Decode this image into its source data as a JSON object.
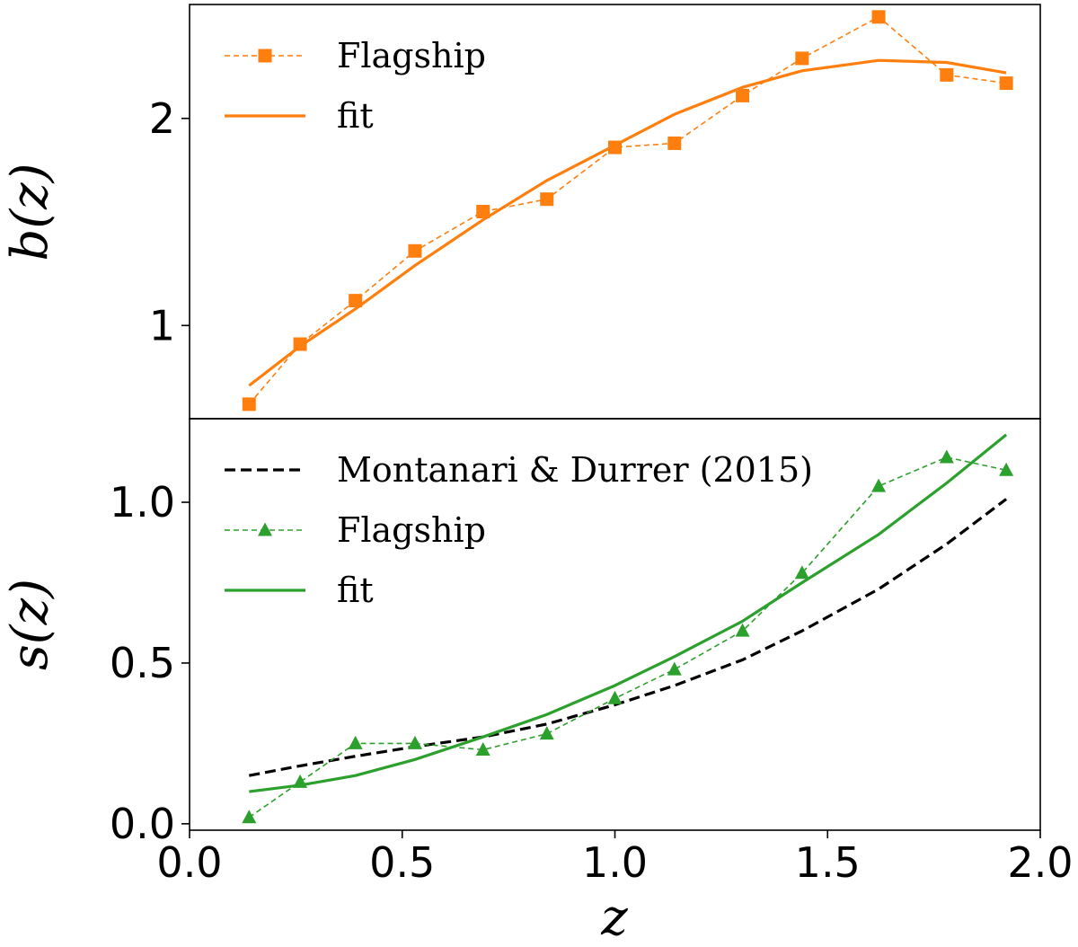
{
  "chart_data": [
    {
      "type": "line",
      "xlim": [
        0.0,
        2.0
      ],
      "ylim": [
        0.55,
        2.55
      ],
      "ylabel": "b(z)",
      "xlabel": "",
      "yticks": [
        1,
        2
      ],
      "ytick_labels": [
        "1",
        "2"
      ],
      "grid": false,
      "legend_position": "top-left",
      "series": [
        {
          "name": "Flagship",
          "color": "#ff7f0e",
          "style": "dashed",
          "marker": "square",
          "x": [
            0.14,
            0.26,
            0.39,
            0.53,
            0.69,
            0.84,
            1.0,
            1.14,
            1.3,
            1.44,
            1.62,
            1.78,
            1.92
          ],
          "y": [
            0.62,
            0.91,
            1.12,
            1.36,
            1.55,
            1.61,
            1.86,
            1.88,
            2.11,
            2.29,
            2.49,
            2.21,
            2.17
          ]
        },
        {
          "name": "fit",
          "color": "#ff7f0e",
          "style": "solid",
          "marker": "none",
          "x": [
            0.14,
            0.26,
            0.39,
            0.53,
            0.69,
            0.84,
            1.0,
            1.14,
            1.3,
            1.44,
            1.62,
            1.78,
            1.92
          ],
          "y": [
            0.71,
            0.9,
            1.08,
            1.29,
            1.51,
            1.7,
            1.87,
            2.02,
            2.15,
            2.23,
            2.28,
            2.27,
            2.22
          ]
        }
      ]
    },
    {
      "type": "line",
      "xlim": [
        0.0,
        2.0
      ],
      "ylim": [
        -0.02,
        1.26
      ],
      "ylabel": "s(z)",
      "xlabel": "z",
      "xticks": [
        0.0,
        0.5,
        1.0,
        1.5,
        2.0
      ],
      "xtick_labels": [
        "0.0",
        "0.5",
        "1.0",
        "1.5",
        "2.0"
      ],
      "yticks": [
        0.0,
        0.5,
        1.0
      ],
      "ytick_labels": [
        "0.0",
        "0.5",
        "1.0"
      ],
      "grid": false,
      "legend_position": "top-left",
      "series": [
        {
          "name": "Montanari & Durrer (2015)",
          "color": "#000000",
          "style": "dashed",
          "marker": "none",
          "x": [
            0.14,
            0.26,
            0.39,
            0.53,
            0.69,
            0.84,
            1.0,
            1.14,
            1.3,
            1.44,
            1.62,
            1.78,
            1.92
          ],
          "y": [
            0.15,
            0.18,
            0.21,
            0.24,
            0.27,
            0.31,
            0.37,
            0.43,
            0.51,
            0.6,
            0.73,
            0.87,
            1.01
          ]
        },
        {
          "name": "Flagship",
          "color": "#2ca02c",
          "style": "dashed",
          "marker": "triangle",
          "x": [
            0.14,
            0.26,
            0.39,
            0.53,
            0.69,
            0.84,
            1.0,
            1.14,
            1.3,
            1.44,
            1.62,
            1.78,
            1.92
          ],
          "y": [
            0.02,
            0.13,
            0.25,
            0.25,
            0.23,
            0.28,
            0.39,
            0.48,
            0.6,
            0.78,
            1.05,
            1.14,
            1.1
          ]
        },
        {
          "name": "fit",
          "color": "#2ca02c",
          "style": "solid",
          "marker": "none",
          "x": [
            0.14,
            0.26,
            0.39,
            0.53,
            0.69,
            0.84,
            1.0,
            1.14,
            1.3,
            1.44,
            1.62,
            1.78,
            1.92
          ],
          "y": [
            0.1,
            0.12,
            0.15,
            0.2,
            0.27,
            0.34,
            0.43,
            0.52,
            0.63,
            0.75,
            0.9,
            1.06,
            1.21
          ]
        }
      ]
    }
  ]
}
